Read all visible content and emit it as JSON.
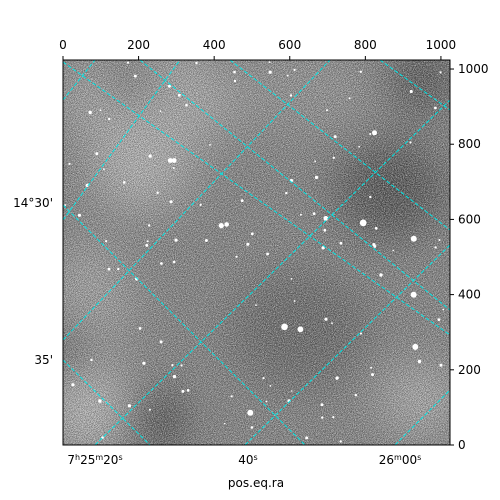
{
  "chart_data": {
    "type": "heatmap",
    "title": "",
    "xlabel": "pos.eq.ra",
    "ylabel": "",
    "colormap": "gray",
    "grid": true,
    "grid_color": "#00e5e5",
    "pixel_axes": {
      "bottom_ticks": [
        0,
        200,
        400,
        600,
        800,
        1000
      ],
      "right_ticks": [
        0,
        200,
        400,
        600,
        800,
        1000
      ],
      "xlim": [
        0,
        1024
      ],
      "ylim": [
        0,
        1024
      ]
    },
    "world_axes": {
      "ra_ticks": [
        {
          "h": "7",
          "m": "25",
          "s": "20",
          "px": 95
        },
        {
          "h": "",
          "m": "",
          "s": "40",
          "px": 248
        },
        {
          "h": "",
          "m": "26",
          "s": "00",
          "px": 400
        }
      ],
      "dec_ticks": [
        {
          "deg": "14",
          "min": "30",
          "py": 203
        },
        {
          "deg": "",
          "min": "35",
          "py": 360
        }
      ]
    }
  }
}
